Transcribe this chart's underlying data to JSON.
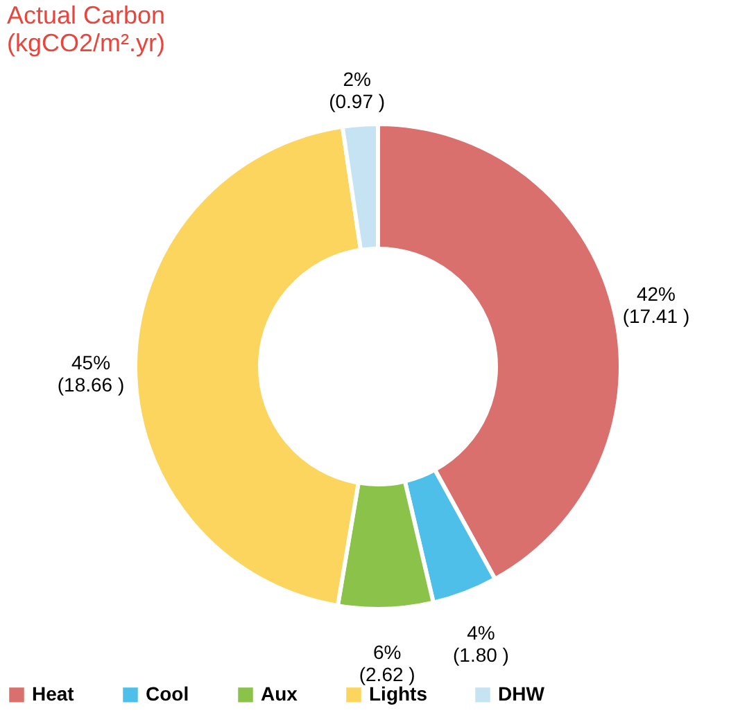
{
  "chart_data": {
    "type": "donut",
    "title": "Actual Carbon\n(kgCO2/m².yr)",
    "categories": [
      "Heat",
      "Cool",
      "Aux",
      "Lights",
      "DHW"
    ],
    "values": [
      17.41,
      1.8,
      2.62,
      18.66,
      0.97
    ],
    "colors": [
      "#d9706d",
      "#4dbfe8",
      "#8bc34a",
      "#fcd55e",
      "#c5e3f3"
    ],
    "value_labels": [
      "42%\n(17.41 )",
      "4%\n(1.80 )",
      "6%\n(2.62 )",
      "45%\n(18.66 )",
      "2%\n(0.97 )"
    ],
    "legend": "bottom"
  }
}
